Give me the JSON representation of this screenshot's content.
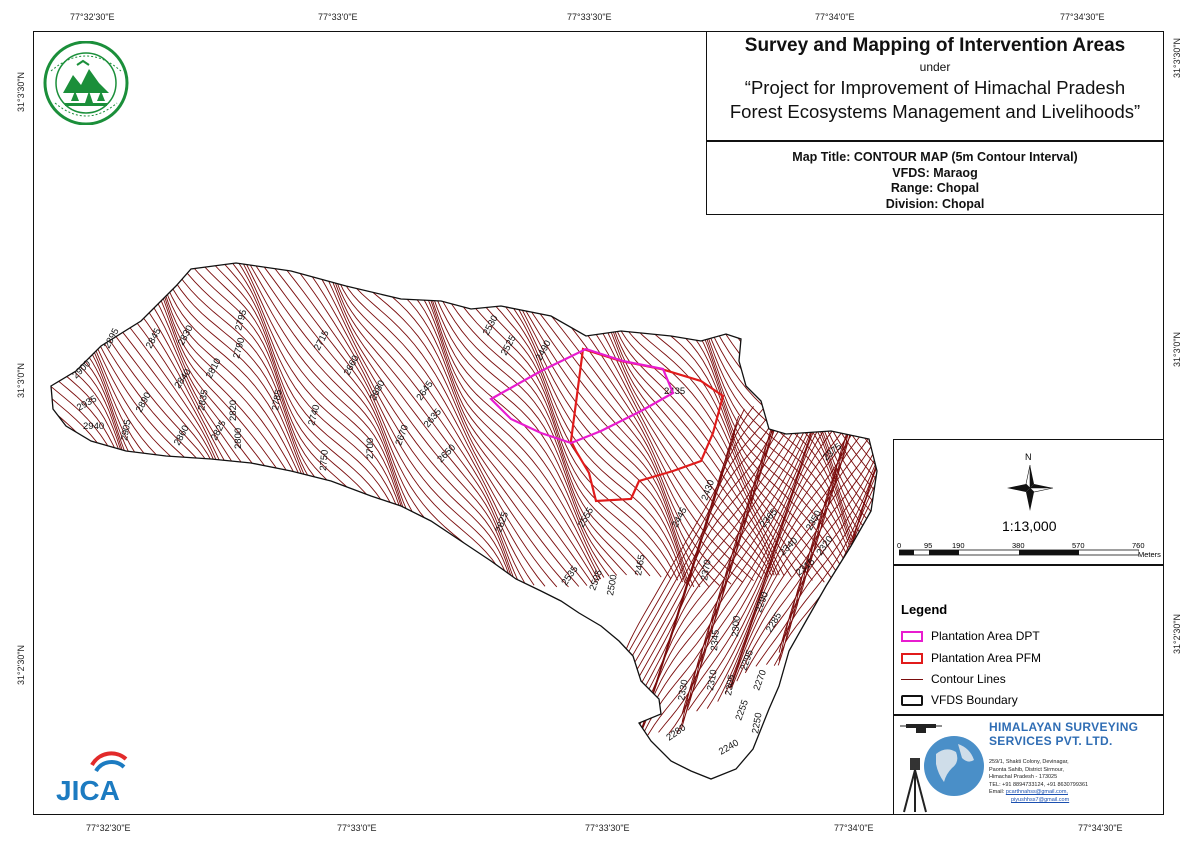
{
  "title": {
    "main": "Survey and Mapping of Intervention Areas",
    "under": "under",
    "project_line1": "“Project for Improvement of Himachal Pradesh",
    "project_line2": "Forest Ecosystems Management and Livelihoods”"
  },
  "info": {
    "map_title": "Map Title: CONTOUR MAP (5m Contour Interval)",
    "vfds": "VFDS: Maraog",
    "range": "Range: Chopal",
    "division": "Division: Chopal"
  },
  "coords": {
    "top": [
      "77°32'30\"E",
      "77°33'0\"E",
      "77°33'30\"E",
      "77°34'0\"E",
      "77°34'30\"E"
    ],
    "bottom": [
      "77°32'30\"E",
      "77°33'0\"E",
      "77°33'30\"E",
      "77°34'0\"E",
      "77°34'30\"E"
    ],
    "left": [
      "31°3'30\"N",
      "31°3'0\"N",
      "31°2'30\"N"
    ],
    "right": [
      "31°3'30\"N",
      "31°3'0\"N",
      "31°2'30\"N"
    ]
  },
  "north": {
    "letter": "N",
    "scale": "1:13,000",
    "ticks": [
      "0",
      "95",
      "190",
      "380",
      "570",
      "760"
    ],
    "unit": "Meters"
  },
  "legend": {
    "title": "Legend",
    "items": [
      {
        "label": "Plantation Area DPT",
        "color": "#e81ccf"
      },
      {
        "label": "Plantation Area PFM",
        "color": "#e11b1b"
      },
      {
        "label": "Contour Lines",
        "color": "#7a0c0c"
      },
      {
        "label": "VFDS Boundary",
        "color": "#111111"
      }
    ]
  },
  "company": {
    "name_line1": "HIMALAYAN SURVEYING",
    "name_line2": "SERVICES PVT. LTD.",
    "addr1": "259/1, Shakti Colony, Devinagar,",
    "addr2": "Paonta Sahib, District Sirmour,",
    "addr3": "Himachal Pradesh - 173025",
    "tel": "TEL: +91 8894733124, +91 8630799361",
    "email_label": "Email:",
    "email1": "pcarthnahss@gmail.com,",
    "email2": "piyushhss7@gmail.com"
  },
  "logos": {
    "jica": "JICA",
    "forest_seal_text": "वन विभाग हिमाचल प्रदेश"
  },
  "contour_labels": [
    "2895",
    "2845",
    "2830",
    "2795",
    "2715",
    "2660",
    "2530",
    "2525",
    "2490",
    "2900",
    "2840",
    "2810",
    "2790",
    "2935",
    "2890",
    "2835",
    "2820",
    "2800",
    "2785",
    "2740",
    "2680",
    "2645",
    "2940",
    "2905",
    "2860",
    "2825",
    "2750",
    "2700",
    "2670",
    "2635",
    "2650",
    "2435",
    "2625",
    "2555",
    "2445",
    "2430",
    "2375",
    "2365",
    "2350",
    "2340",
    "2320",
    "2315",
    "2535",
    "2505",
    "2500",
    "2465",
    "2370",
    "2300",
    "2290",
    "2285",
    "2330",
    "2310",
    "2345",
    "2305",
    "2295",
    "2270",
    "2255",
    "2250",
    "2280",
    "2240"
  ],
  "colors": {
    "contour": "#7a0c0c",
    "dpt": "#e81ccf",
    "pfm": "#e11b1b",
    "boundary": "#111111",
    "company_blue": "#2f6db4"
  }
}
